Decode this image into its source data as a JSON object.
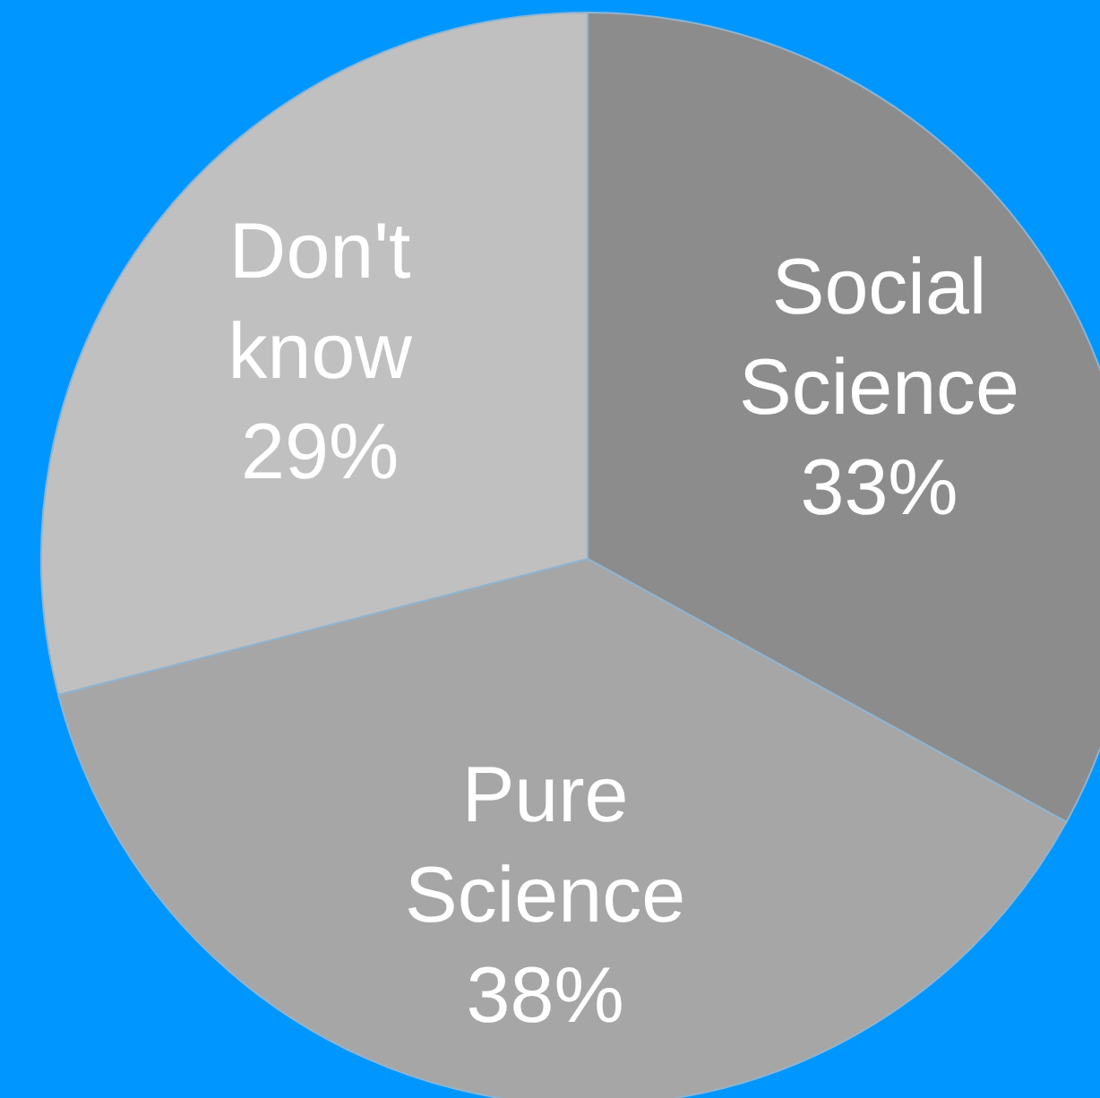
{
  "chart_data": {
    "type": "pie",
    "categories": [
      "Social Science",
      "Pure Science",
      "Don't know"
    ],
    "values": [
      33,
      38,
      29
    ],
    "colors": [
      "#8c8c8c",
      "#a6a6a6",
      "#c0c0c0"
    ],
    "value_labels": [
      "33%",
      "38%",
      "29%"
    ],
    "legend": false
  }
}
